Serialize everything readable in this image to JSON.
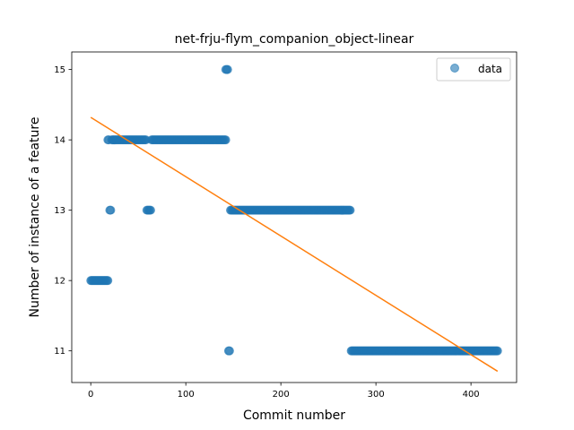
{
  "chart_data": {
    "type": "scatter",
    "title": "net-frju-flym_companion_object-linear",
    "xlabel": "Commit number",
    "ylabel": "Number of instance of a feature",
    "xlim": [
      -20,
      448
    ],
    "ylim": [
      10.55,
      15.25
    ],
    "xticks": [
      0,
      100,
      200,
      300,
      400
    ],
    "yticks": [
      11,
      12,
      13,
      14,
      15
    ],
    "legend": {
      "placement": "top-right",
      "entries": [
        "data"
      ]
    },
    "grid": false,
    "series": [
      {
        "name": "data",
        "kind": "scatter",
        "color": "#1f77b4",
        "runs": [
          {
            "x_start": 0,
            "x_end": 18,
            "y": 12
          },
          {
            "x_start": 18,
            "x_end": 19,
            "y": 14
          },
          {
            "x_start": 20,
            "x_end": 21,
            "y": 13
          },
          {
            "x_start": 22,
            "x_end": 58,
            "y": 14
          },
          {
            "x_start": 59,
            "x_end": 63,
            "y": 13
          },
          {
            "x_start": 64,
            "x_end": 142,
            "y": 14
          },
          {
            "x_start": 142,
            "x_end": 144,
            "y": 15
          },
          {
            "x_start": 145,
            "x_end": 146,
            "y": 11
          },
          {
            "x_start": 147,
            "x_end": 273,
            "y": 13
          },
          {
            "x_start": 274,
            "x_end": 428,
            "y": 11
          }
        ]
      },
      {
        "name": "",
        "kind": "line",
        "color": "#ff7f0e",
        "x": [
          0,
          428
        ],
        "y": [
          14.32,
          10.71
        ]
      }
    ]
  }
}
